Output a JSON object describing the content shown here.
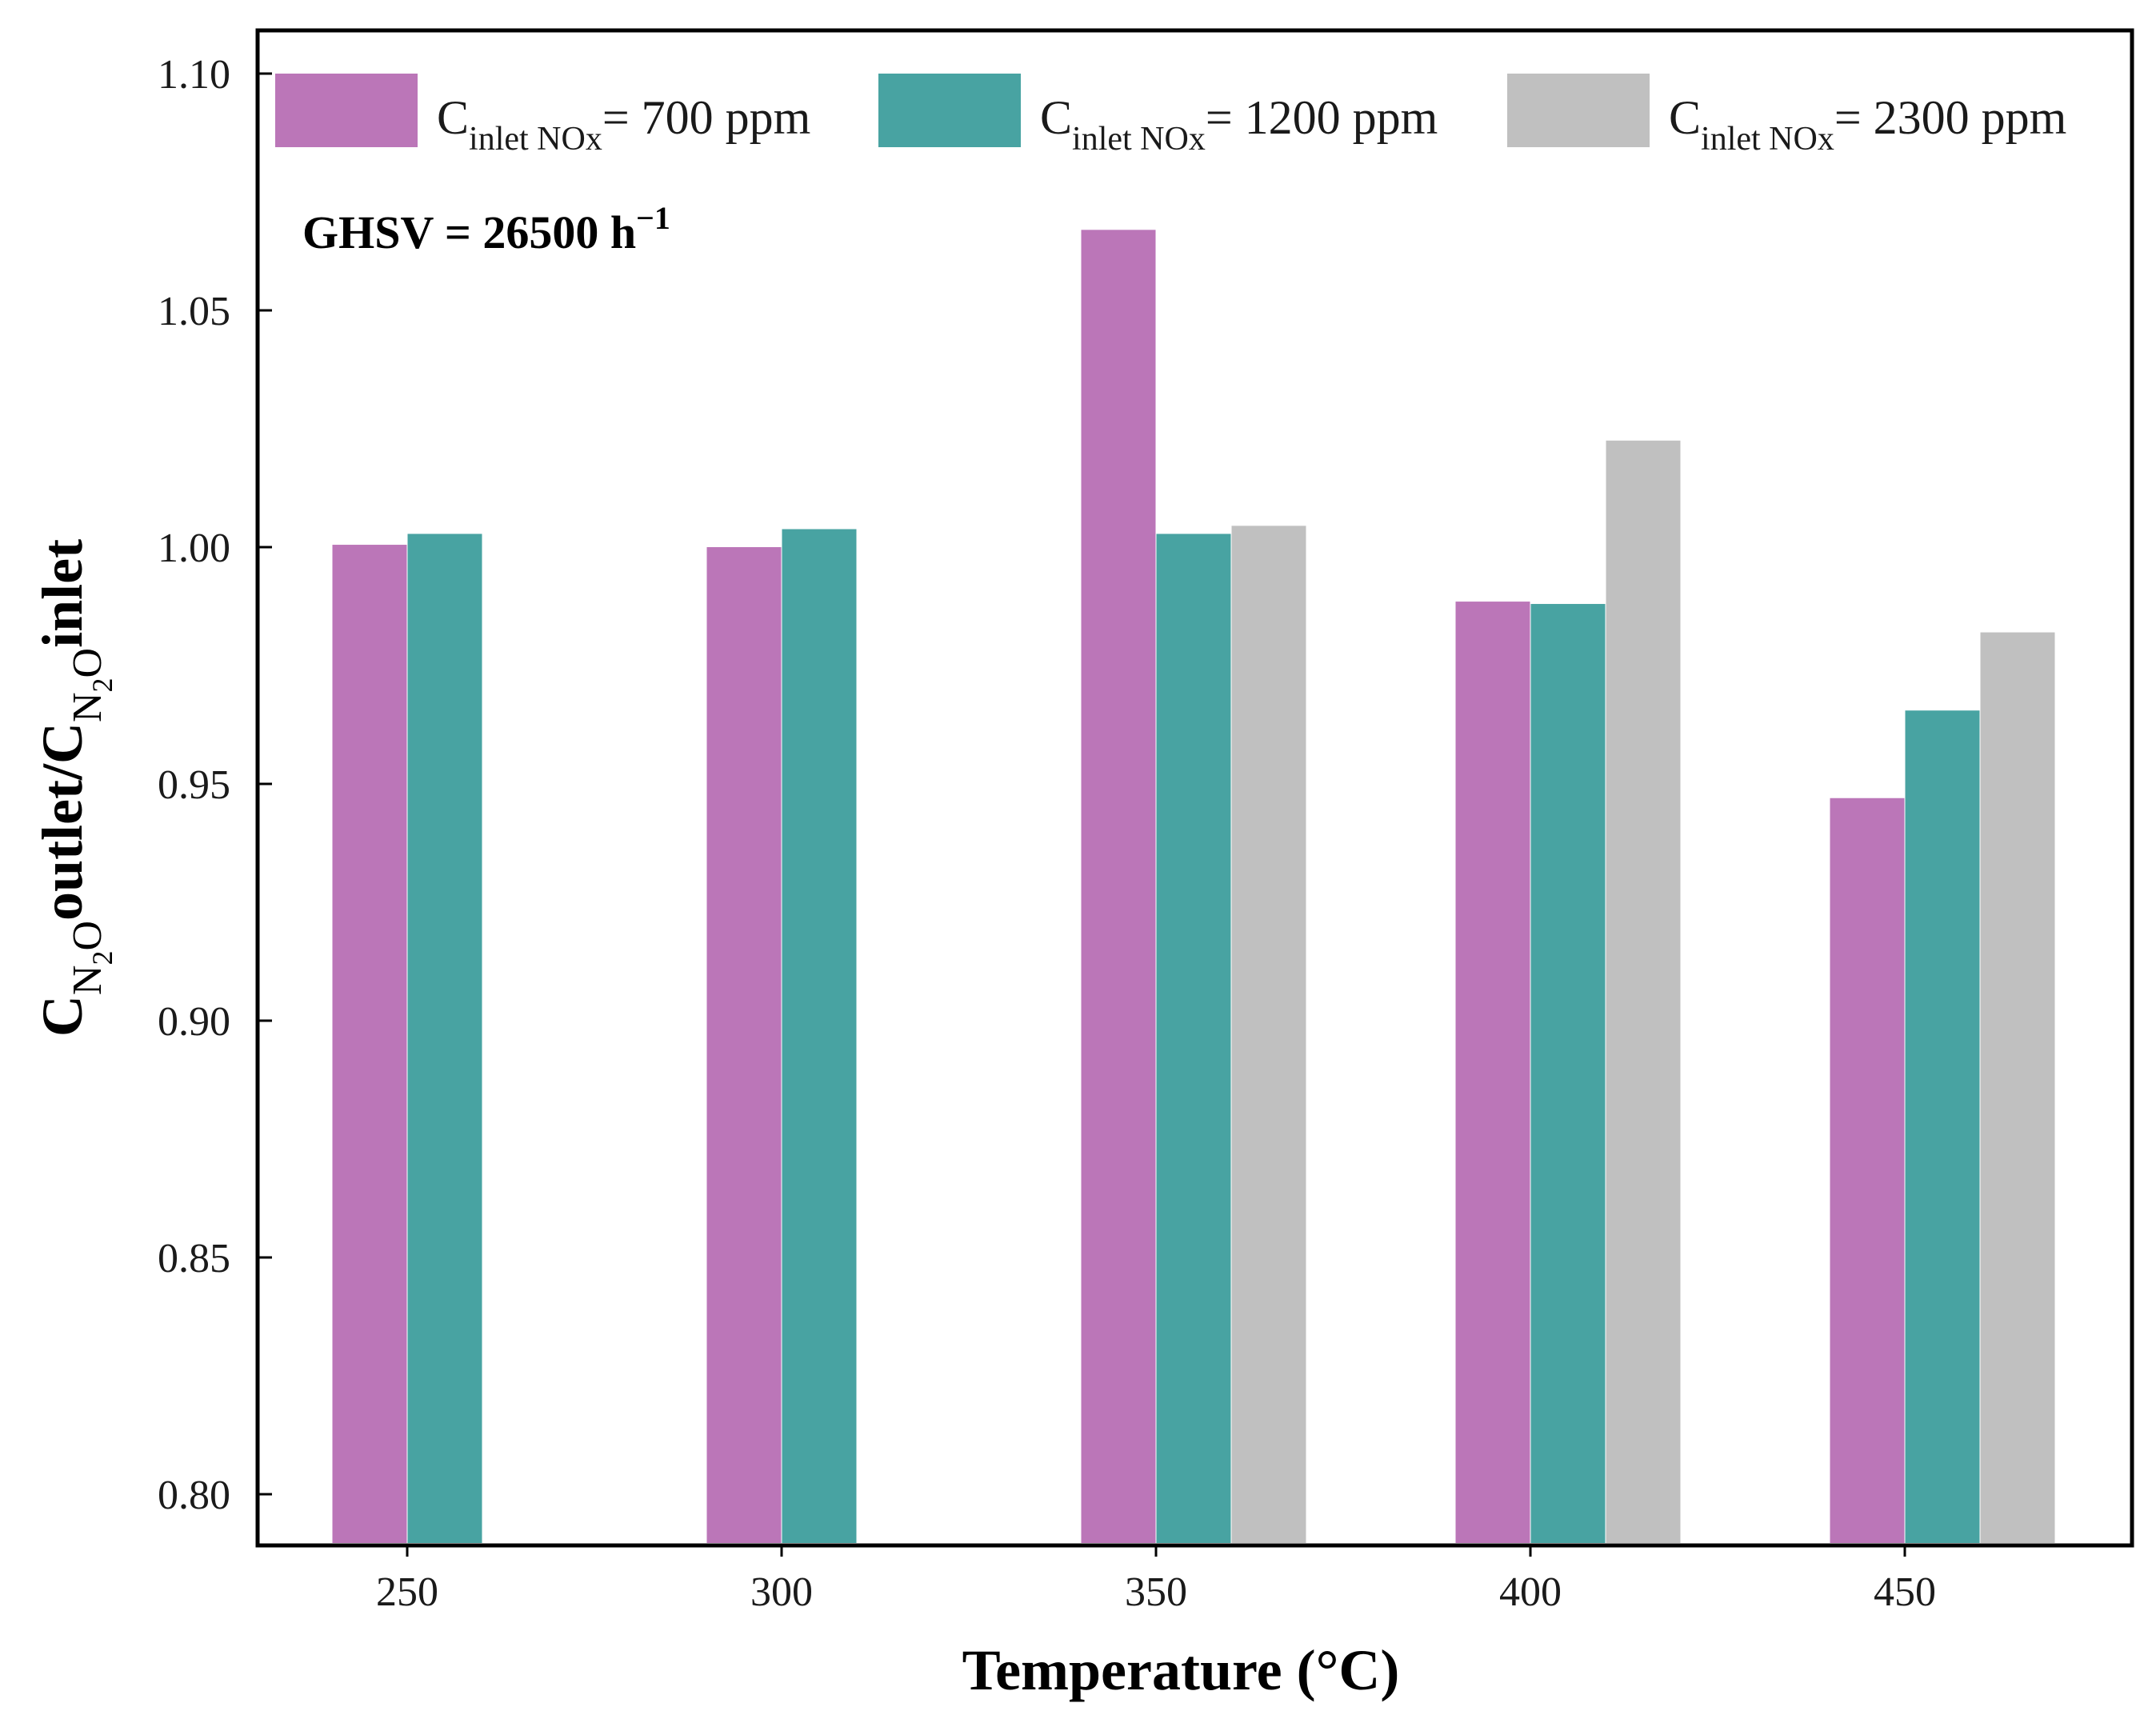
{
  "chart_data": {
    "type": "bar",
    "title": "",
    "xlabel": "Temperature (°C)",
    "ylabel": {
      "c1": "C",
      "sub1": "N",
      "sub1_digit": "2",
      "sub1_end": "O",
      "mid": "outlet/C",
      "sub2": "N",
      "sub2_digit": "2",
      "sub2_end": "O",
      "end": "inlet"
    },
    "categories": [
      "250",
      "300",
      "350",
      "400",
      "450"
    ],
    "ylim": [
      0.79,
      1.11
    ],
    "yticks": [
      "0.80",
      "0.85",
      "0.90",
      "0.95",
      "1.00",
      "1.05",
      "1.10"
    ],
    "annotation": {
      "text": "GHSV = 26500 h",
      "sup": "−1"
    },
    "legend": {
      "placement": "top"
    },
    "series": [
      {
        "name": "C inlet NOx = 700 ppm",
        "label_main": "C",
        "label_sub": "inlet NOx",
        "label_rest": "= 700 ppm",
        "color": "#bb76b8",
        "values": [
          1.0005,
          1.0,
          1.067,
          0.9885,
          0.947
        ]
      },
      {
        "name": "C inlet NOx = 1200 ppm",
        "label_main": "C",
        "label_sub": "inlet NOx",
        "label_rest": "= 1200 ppm",
        "color": "#48a3a2",
        "values": [
          1.0028,
          1.0038,
          1.0028,
          0.988,
          0.9655
        ]
      },
      {
        "name": "C inlet NOx = 2300 ppm",
        "label_main": "C",
        "label_sub": "inlet NOx",
        "label_rest": "= 2300 ppm",
        "color": "#c0c0c0",
        "values": [
          null,
          null,
          1.0045,
          1.0225,
          0.982
        ]
      }
    ]
  }
}
